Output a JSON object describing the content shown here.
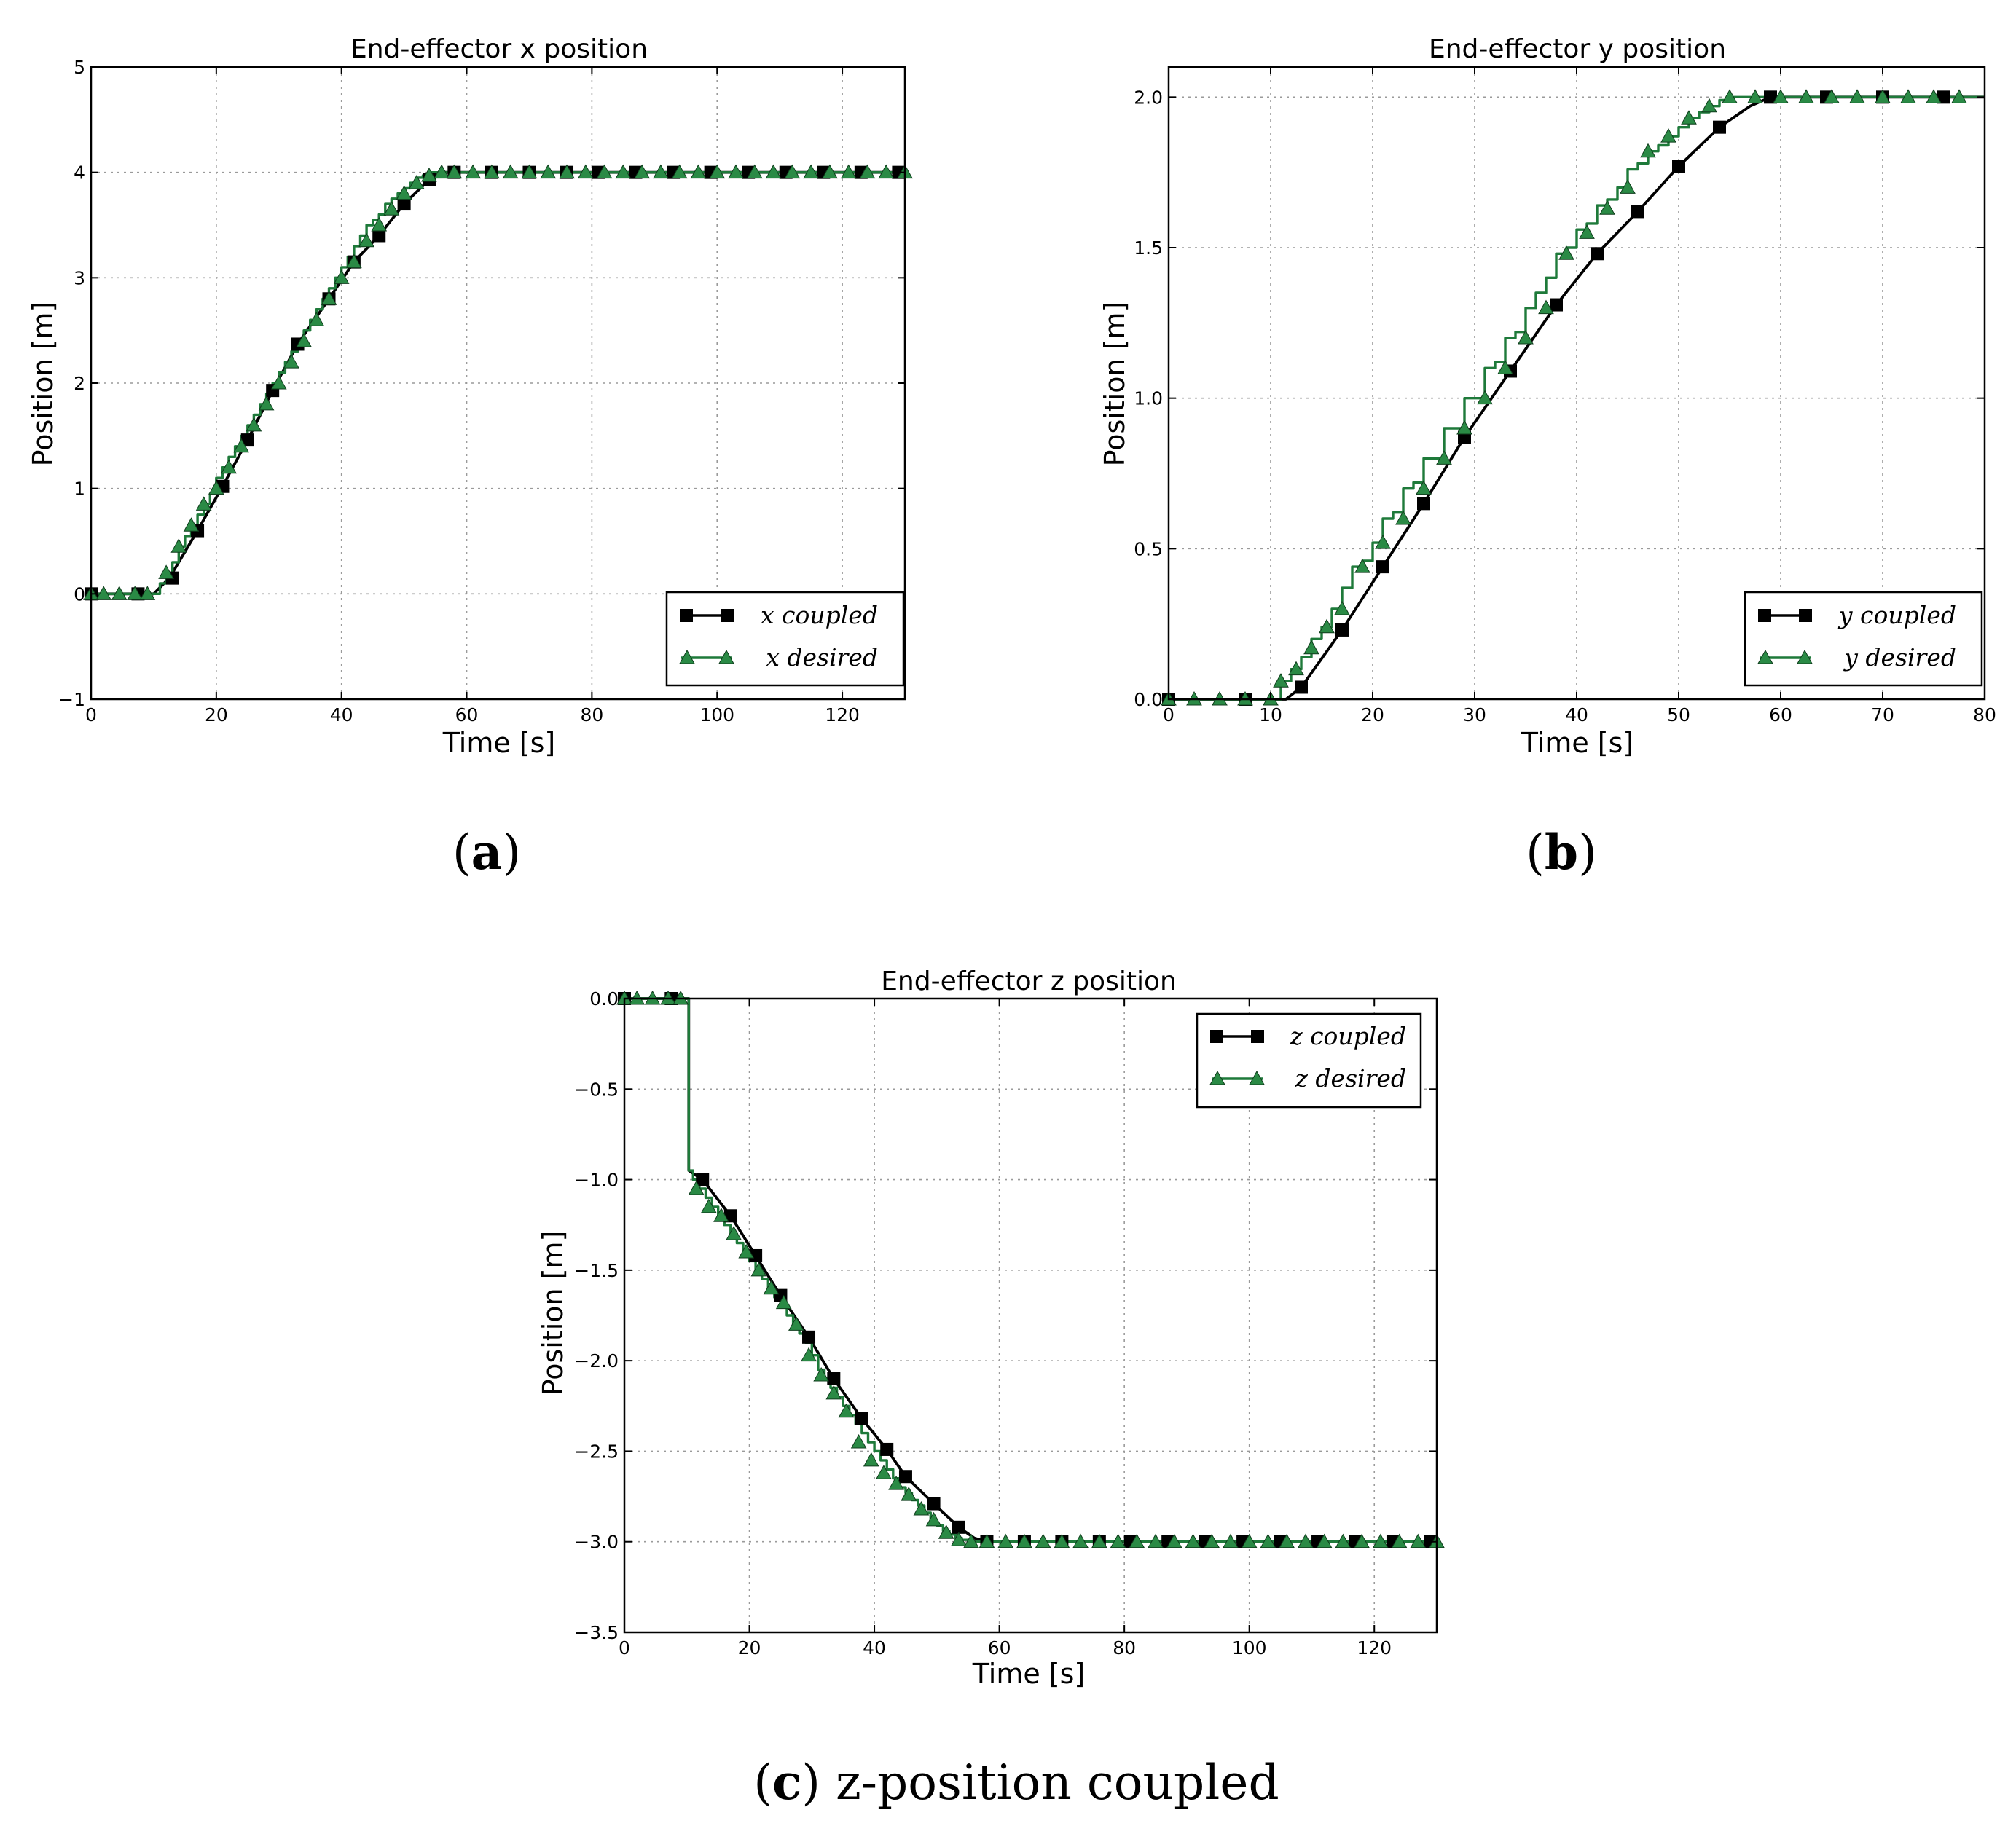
{
  "figure": {
    "captions": [
      {
        "label": "a",
        "text": ""
      },
      {
        "label": "b",
        "text": ""
      },
      {
        "label": "c",
        "text": "z-position coupled"
      }
    ],
    "colors": {
      "coupled": "#000000",
      "desired": "#1e7a3a",
      "desired_marker": "#2a8a45"
    }
  },
  "chart_data": [
    {
      "type": "line",
      "title": "End-effector x position",
      "xlabel": "Time [s]",
      "ylabel": "Position [m]",
      "xlim": [
        0,
        130
      ],
      "ylim": [
        -1,
        5
      ],
      "xticks": [
        0,
        20,
        40,
        60,
        80,
        100,
        120
      ],
      "yticks": [
        -1,
        0,
        1,
        2,
        3,
        4,
        5
      ],
      "ytick_labels": [
        "−1",
        "0",
        "1",
        "2",
        "3",
        "4",
        "5"
      ],
      "grid": true,
      "legend_position": "bottom-right",
      "series": [
        {
          "name": "x coupled",
          "marker": "square",
          "style": "line",
          "color": "#000000",
          "x": [
            0,
            7.5,
            10,
            12.5,
            17,
            21,
            25,
            29,
            33,
            38,
            42,
            46,
            50,
            54,
            56,
            58,
            60,
            130
          ],
          "y": [
            0,
            0,
            0,
            0.15,
            0.6,
            1.02,
            1.46,
            1.93,
            2.37,
            2.8,
            3.15,
            3.4,
            3.7,
            3.93,
            4.0,
            4.0,
            4.0,
            4.0
          ],
          "markers_x": [
            0,
            7.5,
            13,
            17,
            21,
            25,
            29,
            33,
            38,
            42,
            46,
            50,
            54,
            58,
            64,
            70,
            76,
            81,
            87,
            93,
            99,
            105,
            111,
            117,
            123,
            129
          ],
          "markers_y": [
            0,
            0,
            0.15,
            0.6,
            1.02,
            1.46,
            1.93,
            2.37,
            2.8,
            3.15,
            3.4,
            3.7,
            3.93,
            4.0,
            4.0,
            4.0,
            4.0,
            4.0,
            4.0,
            4.0,
            4.0,
            4.0,
            4.0,
            4.0,
            4.0,
            4.0
          ]
        },
        {
          "name": "x desired",
          "marker": "triangle",
          "style": "step",
          "color": "#1e7a3a",
          "x": [
            0,
            10,
            11,
            12,
            13,
            14,
            15,
            16,
            17,
            18,
            19,
            20,
            21,
            22,
            23,
            24,
            25,
            26,
            27,
            28,
            29,
            30,
            31,
            32,
            33,
            34,
            35,
            36,
            37,
            38,
            39,
            40,
            41,
            42,
            43,
            44,
            45,
            46,
            47,
            48,
            49,
            50,
            51,
            52,
            53,
            54,
            55,
            130
          ],
          "y": [
            0,
            0,
            0.1,
            0.2,
            0.3,
            0.45,
            0.55,
            0.65,
            0.75,
            0.85,
            0.95,
            1.1,
            1.2,
            1.3,
            1.4,
            1.5,
            1.6,
            1.7,
            1.8,
            1.9,
            2.0,
            2.1,
            2.2,
            2.3,
            2.4,
            2.5,
            2.6,
            2.7,
            2.8,
            2.9,
            3.0,
            3.1,
            3.2,
            3.3,
            3.4,
            3.5,
            3.55,
            3.6,
            3.7,
            3.75,
            3.8,
            3.85,
            3.9,
            3.95,
            3.97,
            4.0,
            4.0,
            4.0
          ],
          "markers_x": [
            0,
            2,
            4.5,
            7,
            9,
            12,
            14,
            16,
            18,
            20,
            22,
            24,
            26,
            28,
            30,
            32,
            34,
            36,
            38,
            40,
            42,
            44,
            46,
            48,
            50,
            52,
            54,
            56,
            58,
            61,
            64,
            67,
            70,
            73,
            76,
            79,
            82,
            85,
            88,
            91,
            94,
            97,
            100,
            103,
            106,
            109,
            112,
            115,
            118,
            121,
            124,
            127,
            130
          ],
          "markers_y": [
            0,
            0,
            0,
            0,
            0,
            0.2,
            0.45,
            0.65,
            0.85,
            1.0,
            1.2,
            1.4,
            1.6,
            1.8,
            2.0,
            2.2,
            2.4,
            2.6,
            2.8,
            3.0,
            3.15,
            3.35,
            3.5,
            3.65,
            3.8,
            3.9,
            3.97,
            4.0,
            4.0,
            4.0,
            4.0,
            4.0,
            4.0,
            4.0,
            4.0,
            4.0,
            4.0,
            4.0,
            4.0,
            4.0,
            4.0,
            4.0,
            4.0,
            4.0,
            4.0,
            4.0,
            4.0,
            4.0,
            4.0,
            4.0,
            4.0,
            4.0,
            4.0
          ]
        }
      ]
    },
    {
      "type": "line",
      "title": "End-effector y position",
      "xlabel": "Time [s]",
      "ylabel": "Position [m]",
      "xlim": [
        0,
        80
      ],
      "ylim": [
        0,
        2.1
      ],
      "xticks": [
        0,
        10,
        20,
        30,
        40,
        50,
        60,
        70,
        80
      ],
      "yticks": [
        0.0,
        0.5,
        1.0,
        1.5,
        2.0
      ],
      "ytick_labels": [
        "0.0",
        "0.5",
        "1.0",
        "1.5",
        "2.0"
      ],
      "grid": true,
      "legend_position": "bottom-right",
      "series": [
        {
          "name": "y coupled",
          "marker": "square",
          "style": "line",
          "color": "#000000",
          "x": [
            0,
            7.5,
            10,
            11.5,
            13,
            17,
            21,
            25,
            29,
            33.5,
            38,
            42,
            46,
            50,
            54,
            57,
            59,
            80
          ],
          "y": [
            0,
            0,
            0,
            0,
            0.04,
            0.23,
            0.44,
            0.65,
            0.87,
            1.09,
            1.31,
            1.48,
            1.62,
            1.77,
            1.9,
            1.97,
            2.0,
            2.0
          ],
          "markers_x": [
            0,
            7.5,
            13,
            17,
            21,
            25,
            29,
            33.5,
            38,
            42,
            46,
            50,
            54,
            59,
            64.5,
            70,
            76
          ],
          "markers_y": [
            0,
            0,
            0.04,
            0.23,
            0.44,
            0.65,
            0.87,
            1.09,
            1.31,
            1.48,
            1.62,
            1.77,
            1.9,
            2.0,
            2.0,
            2.0,
            2.0
          ]
        },
        {
          "name": "y desired",
          "marker": "triangle",
          "style": "step",
          "color": "#1e7a3a",
          "x": [
            0,
            10,
            11,
            12,
            13,
            14,
            15,
            16,
            17,
            18,
            19,
            20,
            21,
            22,
            23,
            24,
            25,
            26,
            27,
            28,
            29,
            30,
            31,
            32,
            33,
            34,
            35,
            36,
            37,
            38,
            39,
            40,
            41,
            42,
            43,
            44,
            45,
            46,
            47,
            48,
            49,
            50,
            51,
            52,
            53,
            54,
            55,
            80
          ],
          "y": [
            0,
            0,
            0.06,
            0.1,
            0.14,
            0.2,
            0.24,
            0.3,
            0.37,
            0.44,
            0.46,
            0.52,
            0.6,
            0.62,
            0.7,
            0.72,
            0.8,
            0.8,
            0.9,
            0.9,
            1.0,
            1.0,
            1.1,
            1.12,
            1.2,
            1.22,
            1.3,
            1.35,
            1.4,
            1.48,
            1.5,
            1.56,
            1.58,
            1.64,
            1.66,
            1.7,
            1.76,
            1.78,
            1.82,
            1.84,
            1.87,
            1.9,
            1.93,
            1.95,
            1.97,
            1.99,
            2.0,
            2.0
          ],
          "markers_x": [
            0,
            2.5,
            5,
            7.5,
            10,
            11,
            12.5,
            14,
            15.5,
            17,
            19,
            21,
            23,
            25,
            27,
            29,
            31,
            33,
            35,
            37,
            39,
            41,
            43,
            45,
            47,
            49,
            51,
            53,
            55,
            57.5,
            60,
            62.5,
            65,
            67.5,
            70,
            72.5,
            75,
            77.5
          ],
          "markers_y": [
            0,
            0,
            0,
            0,
            0,
            0.06,
            0.1,
            0.17,
            0.24,
            0.3,
            0.44,
            0.52,
            0.6,
            0.7,
            0.8,
            0.9,
            1.0,
            1.1,
            1.2,
            1.3,
            1.48,
            1.55,
            1.63,
            1.7,
            1.82,
            1.87,
            1.93,
            1.97,
            2.0,
            2.0,
            2.0,
            2.0,
            2.0,
            2.0,
            2.0,
            2.0,
            2.0,
            2.0
          ]
        }
      ]
    },
    {
      "type": "line",
      "title": "End-effector z position",
      "xlabel": "Time [s]",
      "ylabel": "Position [m]",
      "xlim": [
        0,
        130
      ],
      "ylim": [
        -3.5,
        0
      ],
      "xticks": [
        0,
        20,
        40,
        60,
        80,
        100,
        120
      ],
      "yticks": [
        -3.5,
        -3.0,
        -2.5,
        -2.0,
        -1.5,
        -1.0,
        -0.5,
        0.0
      ],
      "ytick_labels": [
        "−3.5",
        "−3.0",
        "−2.5",
        "−2.0",
        "−1.5",
        "−1.0",
        "−0.5",
        "0.0"
      ],
      "grid": true,
      "legend_position": "top-right",
      "series": [
        {
          "name": "z coupled",
          "marker": "square",
          "style": "line",
          "color": "#000000",
          "x": [
            0,
            10.3,
            10.3,
            12.5,
            17,
            21,
            25,
            29.5,
            33.5,
            38,
            42,
            45,
            49.5,
            53.5,
            56,
            58,
            130
          ],
          "y": [
            0,
            0,
            -0.95,
            -1.0,
            -1.2,
            -1.42,
            -1.64,
            -1.87,
            -2.1,
            -2.32,
            -2.49,
            -2.64,
            -2.79,
            -2.92,
            -2.98,
            -3.0,
            -3.0
          ],
          "markers_x": [
            0,
            7.5,
            12.5,
            17,
            21,
            25,
            29.5,
            33.5,
            38,
            42,
            45,
            49.5,
            53.5,
            58,
            64,
            70,
            76,
            81,
            87,
            93,
            99,
            105,
            111,
            117,
            123,
            129
          ],
          "markers_y": [
            0,
            0,
            -1.0,
            -1.2,
            -1.42,
            -1.64,
            -1.87,
            -2.1,
            -2.32,
            -2.49,
            -2.64,
            -2.79,
            -2.92,
            -3.0,
            -3.0,
            -3.0,
            -3.0,
            -3.0,
            -3.0,
            -3.0,
            -3.0,
            -3.0,
            -3.0,
            -3.0,
            -3.0,
            -3.0
          ]
        },
        {
          "name": "z desired",
          "marker": "triangle",
          "style": "step",
          "color": "#1e7a3a",
          "x": [
            0,
            10.3,
            11,
            12,
            13,
            14,
            15,
            16,
            17,
            18,
            19,
            20,
            21,
            22,
            23,
            24,
            25,
            26,
            27,
            28,
            29,
            30,
            31,
            32,
            33,
            34,
            35,
            36,
            37,
            38,
            39,
            40,
            41,
            42,
            43,
            44,
            45,
            46,
            47,
            48,
            49,
            50,
            51,
            52,
            53,
            54,
            55,
            130
          ],
          "y": [
            0,
            -0.95,
            -1.0,
            -1.05,
            -1.1,
            -1.15,
            -1.2,
            -1.25,
            -1.3,
            -1.35,
            -1.4,
            -1.45,
            -1.5,
            -1.55,
            -1.6,
            -1.65,
            -1.7,
            -1.75,
            -1.8,
            -1.85,
            -1.9,
            -1.97,
            -2.05,
            -2.1,
            -2.15,
            -2.2,
            -2.25,
            -2.3,
            -2.35,
            -2.4,
            -2.45,
            -2.5,
            -2.55,
            -2.6,
            -2.65,
            -2.7,
            -2.73,
            -2.77,
            -2.8,
            -2.84,
            -2.88,
            -2.91,
            -2.94,
            -2.96,
            -2.98,
            -2.99,
            -3.0,
            -3.0
          ],
          "markers_x": [
            0,
            2,
            4.5,
            7,
            9,
            11.5,
            13.5,
            15.5,
            17.5,
            19.5,
            21.5,
            23.5,
            25.5,
            27.5,
            29.5,
            31.5,
            33.5,
            35.5,
            37.5,
            39.5,
            41.5,
            43.5,
            45.5,
            47.5,
            49.5,
            51.5,
            53.5,
            55.5,
            58,
            61,
            64,
            67,
            70,
            73,
            76,
            79,
            82,
            85,
            88,
            91,
            94,
            97,
            100,
            103,
            106,
            109,
            112,
            115,
            118,
            121,
            124,
            127,
            130
          ],
          "markers_y": [
            0,
            0,
            0,
            0,
            0,
            -1.05,
            -1.15,
            -1.2,
            -1.3,
            -1.4,
            -1.5,
            -1.6,
            -1.68,
            -1.8,
            -1.97,
            -2.08,
            -2.18,
            -2.28,
            -2.45,
            -2.55,
            -2.62,
            -2.68,
            -2.74,
            -2.82,
            -2.88,
            -2.95,
            -2.99,
            -3.0,
            -3.0,
            -3.0,
            -3.0,
            -3.0,
            -3.0,
            -3.0,
            -3.0,
            -3.0,
            -3.0,
            -3.0,
            -3.0,
            -3.0,
            -3.0,
            -3.0,
            -3.0,
            -3.0,
            -3.0,
            -3.0,
            -3.0,
            -3.0,
            -3.0,
            -3.0,
            -3.0,
            -3.0,
            -3.0
          ]
        }
      ]
    }
  ]
}
